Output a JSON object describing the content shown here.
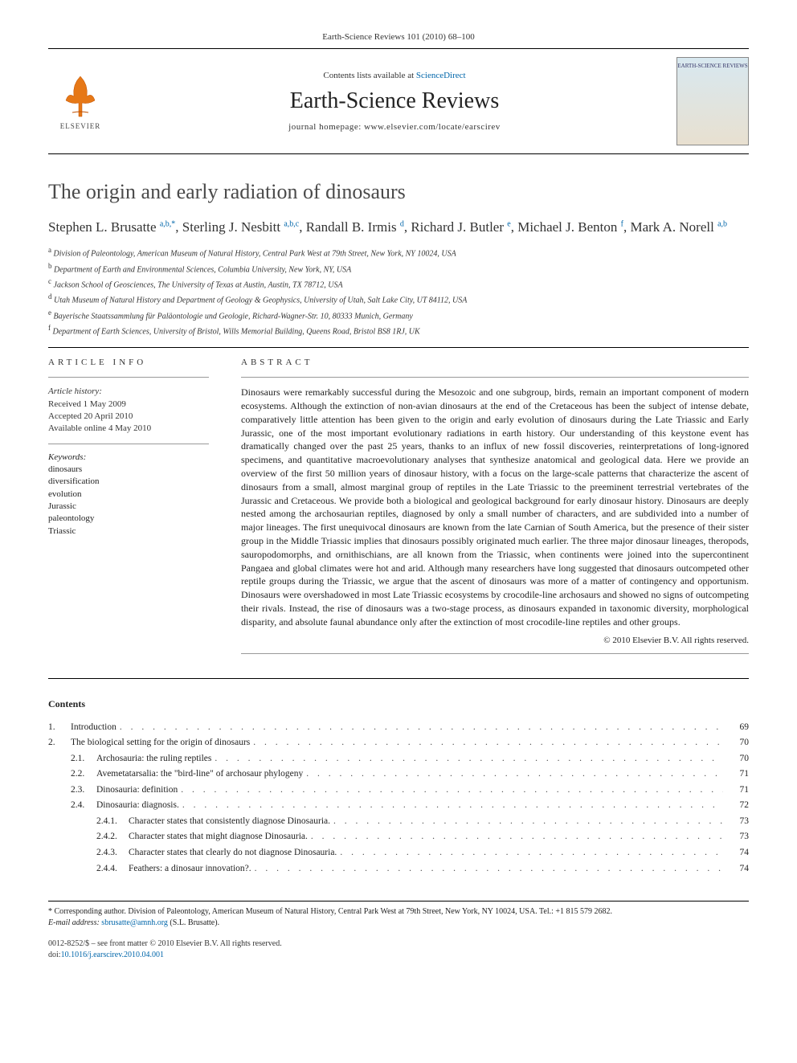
{
  "header": {
    "citation_line": "Earth-Science Reviews 101 (2010) 68–100",
    "contents_line_prefix": "Contents lists available at ",
    "contents_line_link": "ScienceDirect",
    "journal_title": "Earth-Science Reviews",
    "homepage_prefix": "journal homepage: ",
    "homepage_url": "www.elsevier.com/locate/earscirev",
    "publisher_name": "ELSEVIER",
    "cover_label": "EARTH-SCIENCE REVIEWS"
  },
  "article": {
    "title": "The origin and early radiation of dinosaurs",
    "authors_html": "Stephen L. Brusatte <sup>a,b,*</sup>, Sterling J. Nesbitt <sup>a,b,c</sup>, Randall B. Irmis <sup>d</sup>, Richard J. Butler <sup>e</sup>, Michael J. Benton <sup>f</sup>, Mark A. Norell <sup>a,b</sup>",
    "affiliations": [
      {
        "label": "a",
        "text": "Division of Paleontology, American Museum of Natural History, Central Park West at 79th Street, New York, NY 10024, USA"
      },
      {
        "label": "b",
        "text": "Department of Earth and Environmental Sciences, Columbia University, New York, NY, USA"
      },
      {
        "label": "c",
        "text": "Jackson School of Geosciences, The University of Texas at Austin, Austin, TX 78712, USA"
      },
      {
        "label": "d",
        "text": "Utah Museum of Natural History and Department of Geology & Geophysics, University of Utah, Salt Lake City, UT 84112, USA"
      },
      {
        "label": "e",
        "text": "Bayerische Staatssammlung für Paläontologie und Geologie, Richard-Wagner-Str. 10, 80333 Munich, Germany"
      },
      {
        "label": "f",
        "text": "Department of Earth Sciences, University of Bristol, Wills Memorial Building, Queens Road, Bristol BS8 1RJ, UK"
      }
    ]
  },
  "info": {
    "heading": "ARTICLE INFO",
    "history_label": "Article history:",
    "received": "Received 1 May 2009",
    "accepted": "Accepted 20 April 2010",
    "online": "Available online 4 May 2010",
    "keywords_label": "Keywords:",
    "keywords": [
      "dinosaurs",
      "diversification",
      "evolution",
      "Jurassic",
      "paleontology",
      "Triassic"
    ]
  },
  "abstract": {
    "heading": "ABSTRACT",
    "text": "Dinosaurs were remarkably successful during the Mesozoic and one subgroup, birds, remain an important component of modern ecosystems. Although the extinction of non-avian dinosaurs at the end of the Cretaceous has been the subject of intense debate, comparatively little attention has been given to the origin and early evolution of dinosaurs during the Late Triassic and Early Jurassic, one of the most important evolutionary radiations in earth history. Our understanding of this keystone event has dramatically changed over the past 25 years, thanks to an influx of new fossil discoveries, reinterpretations of long-ignored specimens, and quantitative macroevolutionary analyses that synthesize anatomical and geological data. Here we provide an overview of the first 50 million years of dinosaur history, with a focus on the large-scale patterns that characterize the ascent of dinosaurs from a small, almost marginal group of reptiles in the Late Triassic to the preeminent terrestrial vertebrates of the Jurassic and Cretaceous. We provide both a biological and geological background for early dinosaur history. Dinosaurs are deeply nested among the archosaurian reptiles, diagnosed by only a small number of characters, and are subdivided into a number of major lineages. The first unequivocal dinosaurs are known from the late Carnian of South America, but the presence of their sister group in the Middle Triassic implies that dinosaurs possibly originated much earlier. The three major dinosaur lineages, theropods, sauropodomorphs, and ornithischians, are all known from the Triassic, when continents were joined into the supercontinent Pangaea and global climates were hot and arid. Although many researchers have long suggested that dinosaurs outcompeted other reptile groups during the Triassic, we argue that the ascent of dinosaurs was more of a matter of contingency and opportunism. Dinosaurs were overshadowed in most Late Triassic ecosystems by crocodile-line archosaurs and showed no signs of outcompeting their rivals. Instead, the rise of dinosaurs was a two-stage process, as dinosaurs expanded in taxonomic diversity, morphological disparity, and absolute faunal abundance only after the extinction of most crocodile-line reptiles and other groups.",
    "copyright": "© 2010 Elsevier B.V. All rights reserved."
  },
  "contents": {
    "heading": "Contents",
    "items": [
      {
        "level": 1,
        "num": "1.",
        "title": "Introduction",
        "page": "69"
      },
      {
        "level": 1,
        "num": "2.",
        "title": "The biological setting for the origin of dinosaurs",
        "page": "70"
      },
      {
        "level": 2,
        "num": "2.1.",
        "title": "Archosauria: the ruling reptiles",
        "page": "70"
      },
      {
        "level": 2,
        "num": "2.2.",
        "title": "Avemetatarsalia: the \"bird-line\" of archosaur phylogeny",
        "page": "71"
      },
      {
        "level": 2,
        "num": "2.3.",
        "title": "Dinosauria: definition",
        "page": "71"
      },
      {
        "level": 2,
        "num": "2.4.",
        "title": "Dinosauria: diagnosis.",
        "page": "72"
      },
      {
        "level": 3,
        "num": "2.4.1.",
        "title": "Character states that consistently diagnose Dinosauria.",
        "page": "73"
      },
      {
        "level": 3,
        "num": "2.4.2.",
        "title": "Character states that might diagnose Dinosauria.",
        "page": "73"
      },
      {
        "level": 3,
        "num": "2.4.3.",
        "title": "Character states that clearly do not diagnose Dinosauria.",
        "page": "74"
      },
      {
        "level": 3,
        "num": "2.4.4.",
        "title": "Feathers: a dinosaur innovation?.",
        "page": "74"
      }
    ]
  },
  "footnote": {
    "corresponding": "* Corresponding author. Division of Paleontology, American Museum of Natural History, Central Park West at 79th Street, New York, NY 10024, USA. Tel.: +1 815 579 2682.",
    "email_label": "E-mail address:",
    "email": "sbrusatte@amnh.org",
    "email_name": "(S.L. Brusatte)."
  },
  "bottom": {
    "issn_line": "0012-8252/$ – see front matter © 2010 Elsevier B.V. All rights reserved.",
    "doi_prefix": "doi:",
    "doi": "10.1016/j.earscirev.2010.04.001"
  },
  "colors": {
    "link": "#0066aa",
    "text": "#222222",
    "rule": "#000000"
  }
}
